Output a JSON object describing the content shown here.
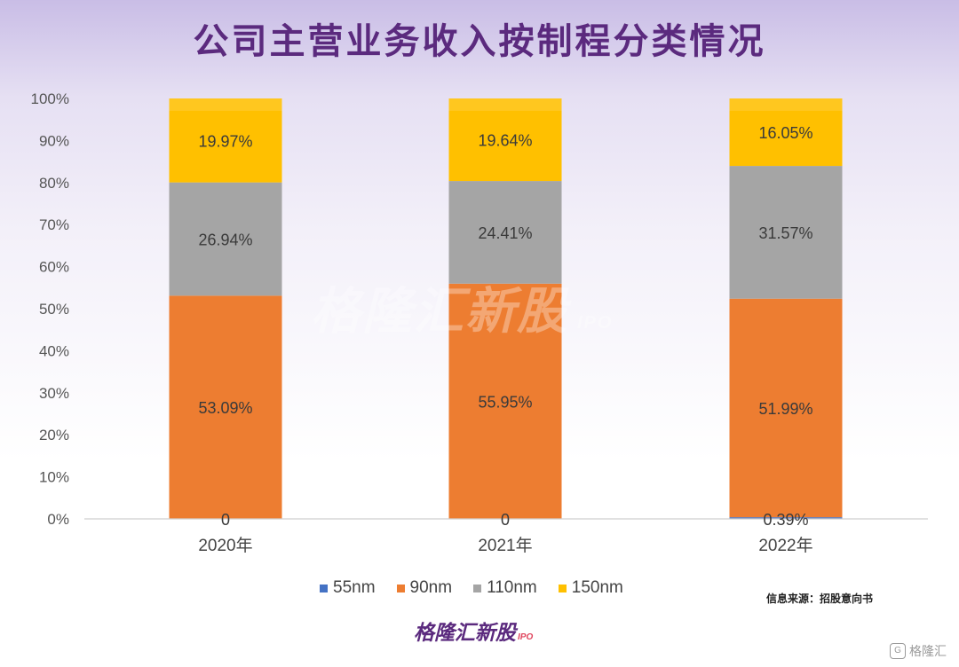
{
  "title": "公司主营业务收入按制程分类情况",
  "chart_data": {
    "type": "bar",
    "stacked": "percent",
    "title": "公司主营业务收入按制程分类情况",
    "categories": [
      "2020年",
      "2021年",
      "2022年"
    ],
    "series": [
      {
        "name": "55nm",
        "color": "#4472c4",
        "values": [
          0,
          0,
          0.39
        ],
        "labels": [
          "0",
          "0",
          "0.39%"
        ]
      },
      {
        "name": "90nm",
        "color": "#ed7d31",
        "values": [
          53.09,
          55.95,
          51.99
        ],
        "labels": [
          "53.09%",
          "55.95%",
          "51.99%"
        ]
      },
      {
        "name": "110nm",
        "color": "#a5a5a5",
        "values": [
          26.94,
          24.41,
          31.57
        ],
        "labels": [
          "26.94%",
          "24.41%",
          "31.57%"
        ]
      },
      {
        "name": "150nm",
        "color": "#ffc000",
        "values": [
          19.97,
          19.64,
          16.05
        ],
        "labels": [
          "19.97%",
          "19.64%",
          "16.05%"
        ]
      }
    ],
    "yticks": [
      "0%",
      "10%",
      "20%",
      "30%",
      "40%",
      "50%",
      "60%",
      "70%",
      "80%",
      "90%",
      "100%"
    ],
    "ylim": [
      0,
      100
    ],
    "xlabel": "",
    "ylabel": "",
    "legend": "bottom",
    "grid": false
  },
  "source_text": "信息来源：招股意向书",
  "watermark": {
    "main": "格隆汇新股",
    "sub": "IPO"
  },
  "brand": {
    "main": "格隆汇新股",
    "sub": "IPO"
  },
  "corner_logo": {
    "icon": "G",
    "text": "格隆汇"
  }
}
